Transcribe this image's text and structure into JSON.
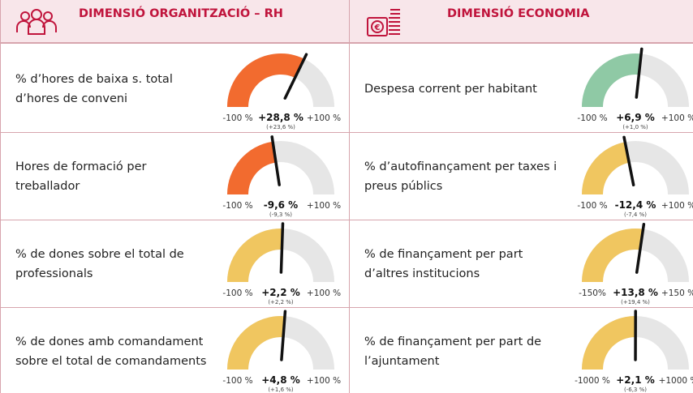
{
  "panels": [
    {
      "title": "DIMENSIÓ ORGANITZACIÓ – RH",
      "rows": [
        {
          "label": "% d’hores de baixa s. total d’hores de conveni",
          "value": 28.8,
          "value_label": "+28,8 %",
          "previous": "(+23,6 %)",
          "min": {
            "value": -100,
            "label": "-100 %"
          },
          "max": {
            "value": 100,
            "label": "+100 %"
          },
          "color": "#f26b2f"
        },
        {
          "label": "Hores de formació per treballador",
          "value": -9.6,
          "value_label": "-9,6 %",
          "previous": "(-9,3 %)",
          "min": {
            "value": -100,
            "label": "-100 %"
          },
          "max": {
            "value": 100,
            "label": "+100 %"
          },
          "color": "#f26b2f"
        },
        {
          "label": "% de dones sobre el total de professionals",
          "value": 2.2,
          "value_label": "+2,2 %",
          "previous": "(+2,2 %)",
          "min": {
            "value": -100,
            "label": "-100 %"
          },
          "max": {
            "value": 100,
            "label": "+100 %"
          },
          "color": "#f0c660"
        },
        {
          "label": "% de dones amb comandament sobre el total de comandaments",
          "value": 4.8,
          "value_label": "+4,8 %",
          "previous": "(+1,6 %)",
          "min": {
            "value": -100,
            "label": "-100 %"
          },
          "max": {
            "value": 100,
            "label": "+100 %"
          },
          "color": "#f0c660"
        }
      ]
    },
    {
      "title": "DIMENSIÓ ECONOMIA",
      "rows": [
        {
          "label": "Despesa corrent per habitant",
          "value": 6.9,
          "value_label": "+6,9 %",
          "previous": "(+1,0 %)",
          "min": {
            "value": -100,
            "label": "-100 %"
          },
          "max": {
            "value": 100,
            "label": "+100 %"
          },
          "color": "#8fc9a5"
        },
        {
          "label": "% d’autofinançament per taxes i preus públics",
          "value": -12.4,
          "value_label": "-12,4 %",
          "previous": "(-7,4 %)",
          "min": {
            "value": -100,
            "label": "-100 %"
          },
          "max": {
            "value": 100,
            "label": "+100 %"
          },
          "color": "#f0c660"
        },
        {
          "label": "% de finançament per part d’altres institucions",
          "value": 13.8,
          "value_label": "+13,8 %",
          "previous": "(+19,4 %)",
          "min": {
            "value": -150,
            "label": "-150%"
          },
          "max": {
            "value": 150,
            "label": "+150 %"
          },
          "color": "#f0c660"
        },
        {
          "label": "% de finançament per part de l’ajuntament",
          "value": 2.1,
          "value_label": "+2,1 %",
          "previous": "(-6,3 %)",
          "min": {
            "value": -1000,
            "label": "-1000 %"
          },
          "max": {
            "value": 1000,
            "label": "+1000 %"
          },
          "color": "#f0c660"
        }
      ]
    }
  ]
}
